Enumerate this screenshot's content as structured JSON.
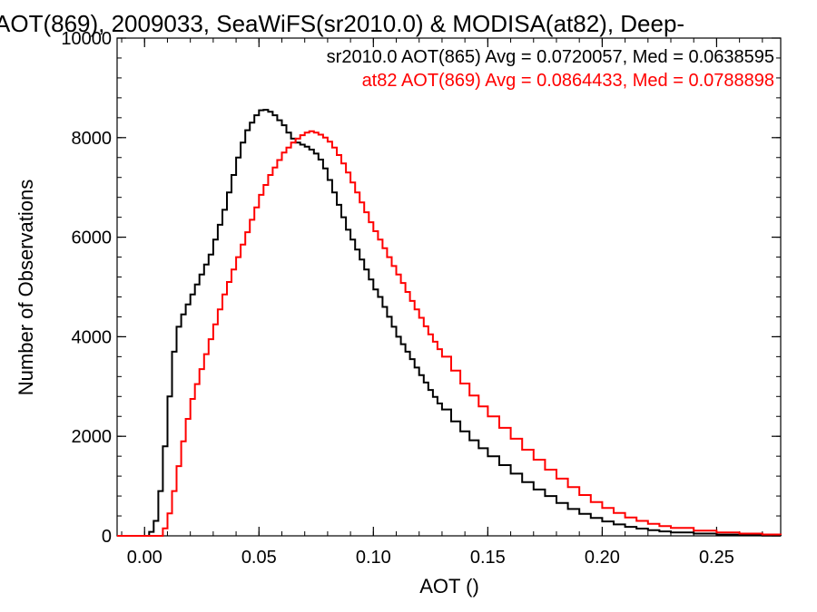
{
  "chart_data": {
    "type": "line",
    "step": true,
    "title": "AOT(869), 2009033, SeaWiFS(sr2010.0) & MODISA(at82), Deep-",
    "xlabel": "AOT ()",
    "ylabel": "Number of Observations",
    "xlim": [
      -0.012,
      0.278
    ],
    "ylim": [
      0,
      10000
    ],
    "xticks": [
      0.0,
      0.05,
      0.1,
      0.15,
      0.2,
      0.25
    ],
    "xtick_labels": [
      "0.00",
      "0.05",
      "0.10",
      "0.15",
      "0.20",
      "0.25"
    ],
    "yticks": [
      0,
      2000,
      4000,
      6000,
      8000,
      10000
    ],
    "ytick_labels": [
      "0",
      "2000",
      "4000",
      "6000",
      "8000",
      "10000"
    ],
    "grid": false,
    "legend": "top-right",
    "series": [
      {
        "name": "sr2010.0 AOT(865) Avg = 0.0720057, Med = 0.0638595",
        "color": "#000000",
        "points": [
          [
            -0.012,
            0
          ],
          [
            0.0,
            0
          ],
          [
            0.002,
            80
          ],
          [
            0.004,
            300
          ],
          [
            0.006,
            900
          ],
          [
            0.008,
            1800
          ],
          [
            0.01,
            2800
          ],
          [
            0.012,
            3700
          ],
          [
            0.014,
            4200
          ],
          [
            0.016,
            4450
          ],
          [
            0.018,
            4650
          ],
          [
            0.02,
            4850
          ],
          [
            0.022,
            5050
          ],
          [
            0.024,
            5250
          ],
          [
            0.026,
            5450
          ],
          [
            0.028,
            5650
          ],
          [
            0.03,
            5950
          ],
          [
            0.032,
            6250
          ],
          [
            0.034,
            6550
          ],
          [
            0.036,
            6900
          ],
          [
            0.038,
            7250
          ],
          [
            0.04,
            7600
          ],
          [
            0.042,
            7900
          ],
          [
            0.044,
            8150
          ],
          [
            0.046,
            8300
          ],
          [
            0.048,
            8450
          ],
          [
            0.05,
            8550
          ],
          [
            0.052,
            8560
          ],
          [
            0.054,
            8520
          ],
          [
            0.056,
            8450
          ],
          [
            0.058,
            8350
          ],
          [
            0.06,
            8250
          ],
          [
            0.062,
            8100
          ],
          [
            0.064,
            7980
          ],
          [
            0.066,
            7900
          ],
          [
            0.068,
            7860
          ],
          [
            0.07,
            7820
          ],
          [
            0.072,
            7760
          ],
          [
            0.074,
            7680
          ],
          [
            0.076,
            7560
          ],
          [
            0.078,
            7380
          ],
          [
            0.08,
            7150
          ],
          [
            0.082,
            6900
          ],
          [
            0.084,
            6650
          ],
          [
            0.086,
            6400
          ],
          [
            0.088,
            6150
          ],
          [
            0.09,
            5950
          ],
          [
            0.092,
            5750
          ],
          [
            0.094,
            5550
          ],
          [
            0.096,
            5350
          ],
          [
            0.098,
            5150
          ],
          [
            0.1,
            4950
          ],
          [
            0.102,
            4800
          ],
          [
            0.104,
            4600
          ],
          [
            0.106,
            4400
          ],
          [
            0.108,
            4200
          ],
          [
            0.11,
            4000
          ],
          [
            0.112,
            3850
          ],
          [
            0.114,
            3700
          ],
          [
            0.116,
            3550
          ],
          [
            0.118,
            3380
          ],
          [
            0.12,
            3230
          ],
          [
            0.122,
            3080
          ],
          [
            0.124,
            2930
          ],
          [
            0.126,
            2790
          ],
          [
            0.128,
            2660
          ],
          [
            0.13,
            2540
          ],
          [
            0.134,
            2300
          ],
          [
            0.138,
            2100
          ],
          [
            0.142,
            1920
          ],
          [
            0.146,
            1760
          ],
          [
            0.15,
            1600
          ],
          [
            0.155,
            1420
          ],
          [
            0.16,
            1250
          ],
          [
            0.165,
            1080
          ],
          [
            0.17,
            930
          ],
          [
            0.175,
            800
          ],
          [
            0.18,
            660
          ],
          [
            0.185,
            540
          ],
          [
            0.19,
            440
          ],
          [
            0.195,
            360
          ],
          [
            0.2,
            290
          ],
          [
            0.205,
            230
          ],
          [
            0.21,
            180
          ],
          [
            0.215,
            145
          ],
          [
            0.22,
            115
          ],
          [
            0.225,
            90
          ],
          [
            0.23,
            70
          ],
          [
            0.24,
            45
          ],
          [
            0.25,
            25
          ],
          [
            0.26,
            12
          ],
          [
            0.27,
            6
          ],
          [
            0.278,
            3
          ]
        ]
      },
      {
        "name": "at82 AOT(869) Avg = 0.0864433, Med = 0.0788898",
        "color": "#ff0000",
        "points": [
          [
            -0.012,
            0
          ],
          [
            0.006,
            0
          ],
          [
            0.008,
            150
          ],
          [
            0.01,
            450
          ],
          [
            0.012,
            900
          ],
          [
            0.014,
            1400
          ],
          [
            0.016,
            1900
          ],
          [
            0.018,
            2350
          ],
          [
            0.02,
            2750
          ],
          [
            0.022,
            3050
          ],
          [
            0.024,
            3350
          ],
          [
            0.026,
            3650
          ],
          [
            0.028,
            3950
          ],
          [
            0.03,
            4250
          ],
          [
            0.032,
            4550
          ],
          [
            0.034,
            4850
          ],
          [
            0.036,
            5100
          ],
          [
            0.038,
            5350
          ],
          [
            0.04,
            5600
          ],
          [
            0.042,
            5850
          ],
          [
            0.044,
            6100
          ],
          [
            0.046,
            6350
          ],
          [
            0.048,
            6600
          ],
          [
            0.05,
            6850
          ],
          [
            0.052,
            7050
          ],
          [
            0.054,
            7250
          ],
          [
            0.056,
            7400
          ],
          [
            0.058,
            7550
          ],
          [
            0.06,
            7700
          ],
          [
            0.062,
            7800
          ],
          [
            0.064,
            7900
          ],
          [
            0.066,
            7980
          ],
          [
            0.068,
            8050
          ],
          [
            0.07,
            8100
          ],
          [
            0.072,
            8130
          ],
          [
            0.074,
            8100
          ],
          [
            0.076,
            8060
          ],
          [
            0.078,
            8000
          ],
          [
            0.08,
            7920
          ],
          [
            0.082,
            7800
          ],
          [
            0.084,
            7650
          ],
          [
            0.086,
            7480
          ],
          [
            0.088,
            7300
          ],
          [
            0.09,
            7100
          ],
          [
            0.092,
            6900
          ],
          [
            0.094,
            6700
          ],
          [
            0.096,
            6500
          ],
          [
            0.098,
            6300
          ],
          [
            0.1,
            6120
          ],
          [
            0.102,
            5950
          ],
          [
            0.104,
            5780
          ],
          [
            0.106,
            5600
          ],
          [
            0.108,
            5420
          ],
          [
            0.11,
            5250
          ],
          [
            0.112,
            5080
          ],
          [
            0.114,
            4900
          ],
          [
            0.116,
            4720
          ],
          [
            0.118,
            4550
          ],
          [
            0.12,
            4380
          ],
          [
            0.122,
            4210
          ],
          [
            0.124,
            4050
          ],
          [
            0.126,
            3900
          ],
          [
            0.128,
            3750
          ],
          [
            0.13,
            3600
          ],
          [
            0.134,
            3320
          ],
          [
            0.138,
            3060
          ],
          [
            0.142,
            2820
          ],
          [
            0.146,
            2600
          ],
          [
            0.15,
            2400
          ],
          [
            0.155,
            2170
          ],
          [
            0.16,
            1950
          ],
          [
            0.165,
            1730
          ],
          [
            0.17,
            1530
          ],
          [
            0.175,
            1330
          ],
          [
            0.18,
            1150
          ],
          [
            0.185,
            980
          ],
          [
            0.19,
            820
          ],
          [
            0.195,
            680
          ],
          [
            0.2,
            560
          ],
          [
            0.205,
            460
          ],
          [
            0.21,
            370
          ],
          [
            0.215,
            300
          ],
          [
            0.22,
            240
          ],
          [
            0.225,
            195
          ],
          [
            0.23,
            160
          ],
          [
            0.24,
            105
          ],
          [
            0.25,
            70
          ],
          [
            0.26,
            45
          ],
          [
            0.27,
            28
          ],
          [
            0.278,
            18
          ]
        ]
      }
    ]
  }
}
